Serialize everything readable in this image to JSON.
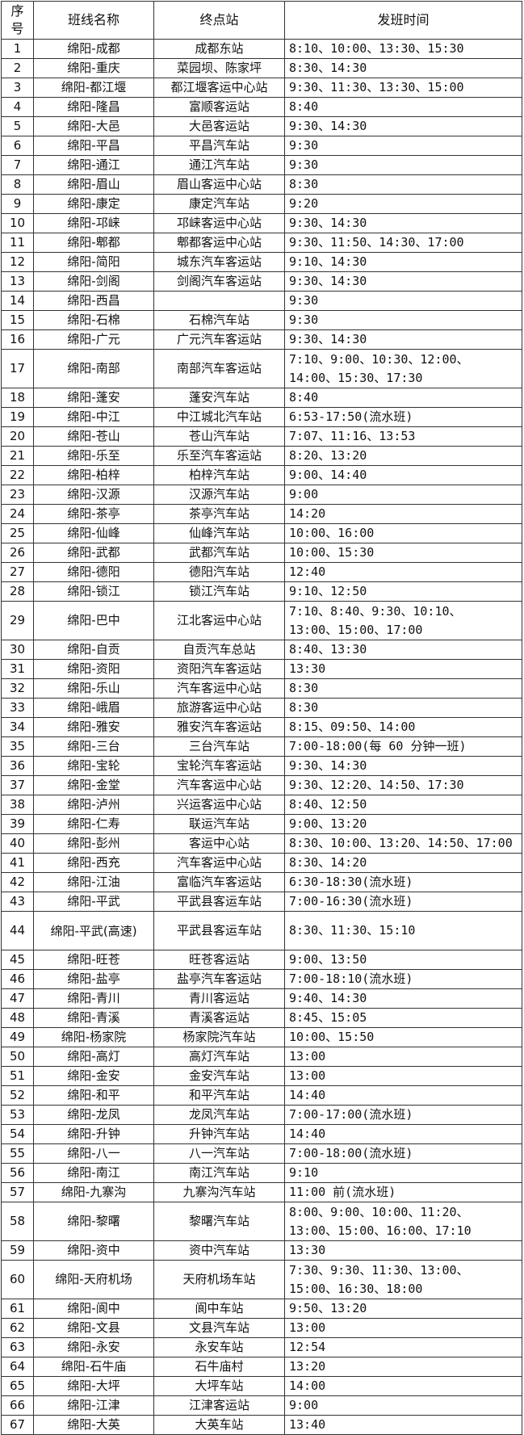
{
  "headers": {
    "no": "序\n号",
    "route": "班线名称",
    "terminal": "终点站",
    "times": "发班时间"
  },
  "rows": [
    {
      "no": "1",
      "route": "绵阳-成都",
      "terminal": "成都东站",
      "times": [
        "8:10、10:00、13:30、15:30"
      ]
    },
    {
      "no": "2",
      "route": "绵阳-重庆",
      "terminal": "菜园坝、陈家坪",
      "times": [
        "8:30、14:30"
      ]
    },
    {
      "no": "3",
      "route": "绵阳-都江堰",
      "terminal": "都江堰客运中心站",
      "times": [
        "9:30、11:30、13:30、15:00"
      ]
    },
    {
      "no": "4",
      "route": "绵阳-隆昌",
      "terminal": "富顺客运站",
      "times": [
        "8:40"
      ]
    },
    {
      "no": "5",
      "route": "绵阳-大邑",
      "terminal": "大邑客运站",
      "times": [
        "9:30、14:30"
      ]
    },
    {
      "no": "6",
      "route": "绵阳-平昌",
      "terminal": "平昌汽车站",
      "times": [
        "9:30"
      ]
    },
    {
      "no": "7",
      "route": "绵阳-通江",
      "terminal": "通江汽车站",
      "times": [
        "9:30"
      ]
    },
    {
      "no": "8",
      "route": "绵阳-眉山",
      "terminal": "眉山客运中心站",
      "times": [
        "8:30"
      ]
    },
    {
      "no": "9",
      "route": "绵阳-康定",
      "terminal": "康定汽车站",
      "times": [
        "9:20"
      ]
    },
    {
      "no": "10",
      "route": "绵阳-邛崃",
      "terminal": "邛崃客运中心站",
      "times": [
        "9:30、14:30"
      ]
    },
    {
      "no": "11",
      "route": "绵阳-郫都",
      "terminal": "郫都客运中心站",
      "times": [
        "9:30、11:50、14:30、17:00"
      ]
    },
    {
      "no": "12",
      "route": "绵阳-简阳",
      "terminal": "城东汽车客运站",
      "times": [
        "9:10、14:30"
      ]
    },
    {
      "no": "13",
      "route": "绵阳-剑阁",
      "terminal": "剑阁汽车客运站",
      "times": [
        "9:30、14:30"
      ]
    },
    {
      "no": "14",
      "route": "绵阳-西昌",
      "terminal": "",
      "times": [
        "9:30"
      ]
    },
    {
      "no": "15",
      "route": "绵阳-石棉",
      "terminal": "石棉汽车站",
      "times": [
        "9:30"
      ]
    },
    {
      "no": "16",
      "route": "绵阳-广元",
      "terminal": "广元汽车客运站",
      "times": [
        "9:30、14:30"
      ]
    },
    {
      "no": "17",
      "route": "绵阳-南部",
      "terminal": "南部汽车客运站",
      "times": [
        "7:10、9:00、10:30、12:00、",
        "14:00、15:30、17:30"
      ]
    },
    {
      "no": "18",
      "route": "绵阳-蓬安",
      "terminal": "蓬安汽车站",
      "times": [
        "8:40"
      ]
    },
    {
      "no": "19",
      "route": "绵阳-中江",
      "terminal": "中江城北汽车站",
      "times": [
        "6:53-17:50(流水班)"
      ]
    },
    {
      "no": "20",
      "route": "绵阳-苍山",
      "terminal": "苍山汽车站",
      "times": [
        "7:07、11:16、13:53"
      ]
    },
    {
      "no": "21",
      "route": "绵阳-乐至",
      "terminal": "乐至汽车客运站",
      "times": [
        "8:20、13:20"
      ]
    },
    {
      "no": "22",
      "route": "绵阳-柏梓",
      "terminal": "柏梓汽车站",
      "times": [
        "9:00、14:40"
      ]
    },
    {
      "no": "23",
      "route": "绵阳-汉源",
      "terminal": "汉源汽车站",
      "times": [
        "9:00"
      ]
    },
    {
      "no": "24",
      "route": "绵阳-茶亭",
      "terminal": "茶亭汽车站",
      "times": [
        "14:20"
      ]
    },
    {
      "no": "25",
      "route": "绵阳-仙峰",
      "terminal": "仙峰汽车站",
      "times": [
        "10:00、16:00"
      ]
    },
    {
      "no": "26",
      "route": "绵阳-武都",
      "terminal": "武都汽车站",
      "times": [
        "10:00、15:30"
      ]
    },
    {
      "no": "27",
      "route": "绵阳-德阳",
      "terminal": "德阳汽车站",
      "times": [
        "12:40"
      ]
    },
    {
      "no": "28",
      "route": "绵阳-锁江",
      "terminal": "锁江汽车站",
      "times": [
        "9:10、12:50"
      ]
    },
    {
      "no": "29",
      "route": "绵阳-巴中",
      "terminal": "江北客运中心站",
      "times": [
        "7:10、8:40、9:30、10:10、",
        "13:00、15:00、17:00"
      ]
    },
    {
      "no": "30",
      "route": "绵阳-自贡",
      "terminal": "自贡汽车总站",
      "times": [
        "8:40、13:30"
      ]
    },
    {
      "no": "31",
      "route": "绵阳-资阳",
      "terminal": "资阳汽车客运站",
      "times": [
        "13:30"
      ]
    },
    {
      "no": "32",
      "route": "绵阳-乐山",
      "terminal": "汽车客运中心站",
      "times": [
        "8:30"
      ]
    },
    {
      "no": "33",
      "route": "绵阳-峨眉",
      "terminal": "旅游客运中心站",
      "times": [
        "8:30"
      ]
    },
    {
      "no": "34",
      "route": "绵阳-雅安",
      "terminal": "雅安汽车客运站",
      "times": [
        "8:15、09:50、14:00"
      ]
    },
    {
      "no": "35",
      "route": "绵阳-三台",
      "terminal": "三台汽车站",
      "times": [
        "7:00-18:00(每 60 分钟一班)"
      ]
    },
    {
      "no": "36",
      "route": "绵阳-宝轮",
      "terminal": "宝轮汽车客运站",
      "times": [
        "9:30、14:30"
      ]
    },
    {
      "no": "37",
      "route": "绵阳-金堂",
      "terminal": "汽车客运中心站",
      "times": [
        "9:30、12:20、14:50、17:30"
      ]
    },
    {
      "no": "38",
      "route": "绵阳-泸州",
      "terminal": "兴运客运中心站",
      "times": [
        "8:40、12:50"
      ]
    },
    {
      "no": "39",
      "route": "绵阳-仁寿",
      "terminal": "联运汽车站",
      "times": [
        "9:00、13:20"
      ]
    },
    {
      "no": "40",
      "route": "绵阳-彭州",
      "terminal": "客运中心站",
      "times": [
        "8:30、10:00、13:20、14:50、17:00"
      ]
    },
    {
      "no": "41",
      "route": "绵阳-西充",
      "terminal": "汽车客运中心站",
      "times": [
        "8:30、14:20"
      ]
    },
    {
      "no": "42",
      "route": "绵阳-江油",
      "terminal": "富临汽车客运站",
      "times": [
        "6:30-18:30(流水班)"
      ]
    },
    {
      "no": "43",
      "route": "绵阳-平武",
      "terminal": "平武县客运车站",
      "times": [
        "7:00-16:30(流水班)"
      ]
    },
    {
      "no": "44",
      "route": "绵阳-平武(高速)",
      "terminal": "平武县客运车站",
      "times": [
        "8:30、11:30、15:10"
      ],
      "tall": true
    },
    {
      "no": "45",
      "route": "绵阳-旺苍",
      "terminal": "旺苍客运站",
      "times": [
        "9:00、13:50"
      ]
    },
    {
      "no": "46",
      "route": "绵阳-盐亭",
      "terminal": "盐亭汽车客运站",
      "times": [
        "7:00-18:10(流水班)"
      ]
    },
    {
      "no": "47",
      "route": "绵阳-青川",
      "terminal": "青川客运站",
      "times": [
        "9:40、14:30"
      ]
    },
    {
      "no": "48",
      "route": "绵阳-青溪",
      "terminal": "青溪客运站",
      "times": [
        "8:45、15:05"
      ]
    },
    {
      "no": "49",
      "route": "绵阳-杨家院",
      "terminal": "杨家院汽车站",
      "times": [
        "10:00、15:50"
      ]
    },
    {
      "no": "50",
      "route": "绵阳-高灯",
      "terminal": "高灯汽车站",
      "times": [
        "13:00"
      ]
    },
    {
      "no": "51",
      "route": "绵阳-金安",
      "terminal": "金安汽车站",
      "times": [
        "13:00"
      ]
    },
    {
      "no": "52",
      "route": "绵阳-和平",
      "terminal": "和平汽车站",
      "times": [
        "14:40"
      ]
    },
    {
      "no": "53",
      "route": "绵阳-龙凤",
      "terminal": "龙凤汽车站",
      "times": [
        "7:00-17:00(流水班)"
      ]
    },
    {
      "no": "54",
      "route": "绵阳-升钟",
      "terminal": "升钟汽车站",
      "times": [
        "14:40"
      ]
    },
    {
      "no": "55",
      "route": "绵阳-八一",
      "terminal": "八一汽车站",
      "times": [
        "7:00-18:00(流水班)"
      ]
    },
    {
      "no": "56",
      "route": "绵阳-南江",
      "terminal": "南江汽车站",
      "times": [
        "9:10"
      ]
    },
    {
      "no": "57",
      "route": "绵阳-九寨沟",
      "terminal": "九寨沟汽车站",
      "times": [
        "11:00 前(流水班)"
      ]
    },
    {
      "no": "58",
      "route": "绵阳-黎曙",
      "terminal": "黎曙汽车站",
      "times": [
        "8:00、9:00、10:00、11:20、",
        "13:00、15:00、16:00、17:10"
      ]
    },
    {
      "no": "59",
      "route": "绵阳-资中",
      "terminal": "资中汽车站",
      "times": [
        "13:30"
      ]
    },
    {
      "no": "60",
      "route": "绵阳-天府机场",
      "terminal": "天府机场车站",
      "times": [
        "7:30、9:30、11:30、13:00、",
        "15:00、16:30、18:00"
      ]
    },
    {
      "no": "61",
      "route": "绵阳-阆中",
      "terminal": "阆中车站",
      "times": [
        "9:50、13:20"
      ]
    },
    {
      "no": "62",
      "route": "绵阳-文县",
      "terminal": "文县汽车站",
      "times": [
        "13:00"
      ]
    },
    {
      "no": "63",
      "route": "绵阳-永安",
      "terminal": "永安车站",
      "times": [
        "12:54"
      ]
    },
    {
      "no": "64",
      "route": "绵阳-石牛庙",
      "terminal": "石牛庙村",
      "times": [
        "13:20"
      ]
    },
    {
      "no": "65",
      "route": "绵阳-大坪",
      "terminal": "大坪车站",
      "times": [
        "14:00"
      ]
    },
    {
      "no": "66",
      "route": "绵阳-江津",
      "terminal": "江津客运站",
      "times": [
        "9:00"
      ]
    },
    {
      "no": "67",
      "route": "绵阳-大英",
      "terminal": "大英车站",
      "times": [
        "13:40"
      ]
    }
  ]
}
